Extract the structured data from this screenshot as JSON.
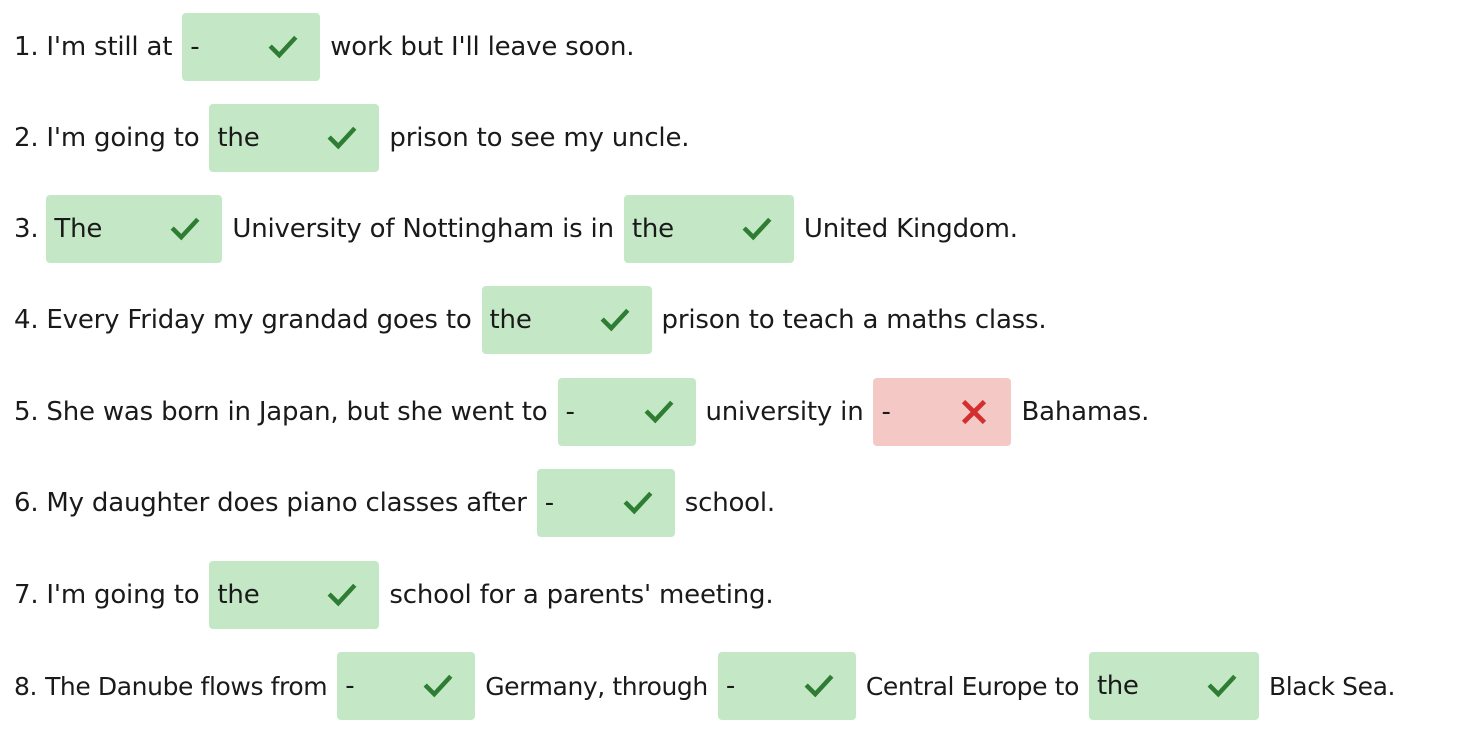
{
  "sentences": [
    {
      "number": "1.",
      "parts": [
        "I'm still at",
        "work but I'll leave soon."
      ],
      "answers": [
        {
          "value": "-",
          "status": "correct"
        }
      ]
    },
    {
      "number": "2.",
      "parts": [
        "I'm going to",
        "prison to see my uncle."
      ],
      "answers": [
        {
          "value": "the",
          "status": "correct"
        }
      ]
    },
    {
      "number": "3.",
      "parts": [
        "",
        "University of Nottingham is in",
        "United Kingdom."
      ],
      "answers": [
        {
          "value": "The",
          "status": "correct"
        },
        {
          "value": "the",
          "status": "correct"
        }
      ]
    },
    {
      "number": "4.",
      "parts": [
        "Every Friday my grandad goes to",
        "prison to teach a maths class."
      ],
      "answers": [
        {
          "value": "the",
          "status": "correct"
        }
      ]
    },
    {
      "number": "5.",
      "parts": [
        "She was born in Japan, but she went to",
        "university in",
        "Bahamas."
      ],
      "answers": [
        {
          "value": "-",
          "status": "correct"
        },
        {
          "value": "-",
          "status": "wrong"
        }
      ]
    },
    {
      "number": "6.",
      "parts": [
        "My daughter does piano classes after",
        "school."
      ],
      "answers": [
        {
          "value": "-",
          "status": "correct"
        }
      ]
    },
    {
      "number": "7.",
      "parts": [
        "I'm going to",
        "school for a parents' meeting."
      ],
      "answers": [
        {
          "value": "the",
          "status": "correct"
        }
      ]
    },
    {
      "number": "8.",
      "parts": [
        "The Danube flows from",
        "Germany, through",
        "Central Europe to",
        "Black Sea."
      ],
      "answers": [
        {
          "value": "-",
          "status": "correct"
        },
        {
          "value": "-",
          "status": "correct"
        },
        {
          "value": "the",
          "status": "correct"
        }
      ]
    }
  ],
  "colors": {
    "correct_bg": "#c4e8c6",
    "correct_mark": "#2e7d32",
    "wrong_bg": "#f4c8c4",
    "wrong_mark": "#d32f2f"
  },
  "icons": {
    "correct": "check-icon",
    "wrong": "cross-icon"
  }
}
